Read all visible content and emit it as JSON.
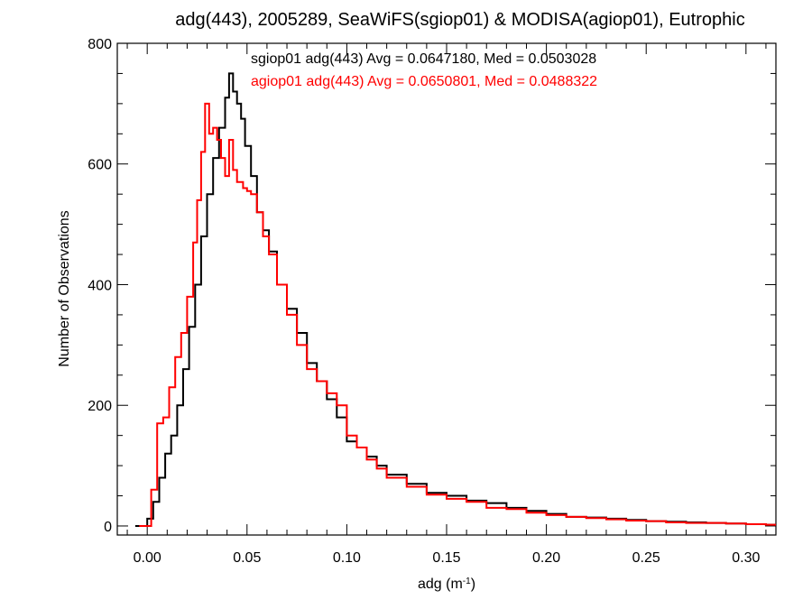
{
  "chart_data": {
    "type": "line",
    "subtype": "step-histogram",
    "title": "adg(443), 2005289, SeaWiFS(sgiop01) & MODISA(agiop01), Eutrophic",
    "xlabel_main": "adg (m",
    "xlabel_sup": "-1",
    "xlabel_end": ")",
    "ylabel": "Number of Observations",
    "xlim": [
      -0.015,
      0.315
    ],
    "ylim": [
      -15,
      800
    ],
    "x_ticks": [
      "0.00",
      "0.05",
      "0.10",
      "0.15",
      "0.20",
      "0.25",
      "0.30"
    ],
    "x_tick_values": [
      0.0,
      0.05,
      0.1,
      0.15,
      0.2,
      0.25,
      0.3
    ],
    "y_ticks": [
      "0",
      "200",
      "400",
      "600",
      "800"
    ],
    "y_tick_values": [
      0,
      200,
      400,
      600,
      800
    ],
    "grid": false,
    "legend_position": "top-right",
    "series": [
      {
        "name": "sgiop01",
        "legend_text": "sgiop01 adg(443) Avg = 0.0647180, Med = 0.0503028",
        "color": "#000000",
        "points": [
          [
            -0.006,
            0
          ],
          [
            0.0,
            12
          ],
          [
            0.003,
            40
          ],
          [
            0.006,
            80
          ],
          [
            0.009,
            120
          ],
          [
            0.012,
            150
          ],
          [
            0.015,
            200
          ],
          [
            0.018,
            260
          ],
          [
            0.021,
            330
          ],
          [
            0.024,
            400
          ],
          [
            0.027,
            480
          ],
          [
            0.03,
            550
          ],
          [
            0.033,
            610
          ],
          [
            0.036,
            660
          ],
          [
            0.039,
            710
          ],
          [
            0.041,
            750
          ],
          [
            0.043,
            720
          ],
          [
            0.045,
            700
          ],
          [
            0.047,
            675
          ],
          [
            0.049,
            630
          ],
          [
            0.052,
            580
          ],
          [
            0.055,
            520
          ],
          [
            0.058,
            490
          ],
          [
            0.061,
            455
          ],
          [
            0.065,
            400
          ],
          [
            0.07,
            360
          ],
          [
            0.075,
            320
          ],
          [
            0.08,
            270
          ],
          [
            0.085,
            240
          ],
          [
            0.09,
            210
          ],
          [
            0.095,
            180
          ],
          [
            0.1,
            140
          ],
          [
            0.105,
            130
          ],
          [
            0.11,
            115
          ],
          [
            0.115,
            100
          ],
          [
            0.12,
            85
          ],
          [
            0.13,
            70
          ],
          [
            0.14,
            55
          ],
          [
            0.15,
            50
          ],
          [
            0.16,
            42
          ],
          [
            0.17,
            38
          ],
          [
            0.18,
            30
          ],
          [
            0.19,
            25
          ],
          [
            0.2,
            20
          ],
          [
            0.21,
            15
          ],
          [
            0.22,
            14
          ],
          [
            0.23,
            12
          ],
          [
            0.24,
            10
          ],
          [
            0.25,
            8
          ],
          [
            0.26,
            7
          ],
          [
            0.27,
            6
          ],
          [
            0.28,
            5
          ],
          [
            0.29,
            4
          ],
          [
            0.3,
            3
          ],
          [
            0.31,
            2
          ],
          [
            0.315,
            2
          ]
        ]
      },
      {
        "name": "agiop01",
        "legend_text": "agiop01 adg(443) Avg = 0.0650801, Med = 0.0488322",
        "color": "#ff0000",
        "points": [
          [
            -0.004,
            0
          ],
          [
            0.002,
            60
          ],
          [
            0.005,
            170
          ],
          [
            0.008,
            180
          ],
          [
            0.011,
            230
          ],
          [
            0.014,
            280
          ],
          [
            0.017,
            320
          ],
          [
            0.02,
            380
          ],
          [
            0.023,
            470
          ],
          [
            0.025,
            540
          ],
          [
            0.027,
            620
          ],
          [
            0.029,
            700
          ],
          [
            0.031,
            650
          ],
          [
            0.033,
            660
          ],
          [
            0.035,
            640
          ],
          [
            0.037,
            610
          ],
          [
            0.039,
            580
          ],
          [
            0.041,
            640
          ],
          [
            0.043,
            590
          ],
          [
            0.045,
            570
          ],
          [
            0.048,
            560
          ],
          [
            0.05,
            555
          ],
          [
            0.052,
            550
          ],
          [
            0.055,
            520
          ],
          [
            0.058,
            480
          ],
          [
            0.061,
            450
          ],
          [
            0.065,
            400
          ],
          [
            0.07,
            350
          ],
          [
            0.075,
            300
          ],
          [
            0.08,
            260
          ],
          [
            0.085,
            240
          ],
          [
            0.09,
            220
          ],
          [
            0.095,
            200
          ],
          [
            0.1,
            150
          ],
          [
            0.105,
            130
          ],
          [
            0.11,
            110
          ],
          [
            0.115,
            95
          ],
          [
            0.12,
            80
          ],
          [
            0.13,
            65
          ],
          [
            0.14,
            52
          ],
          [
            0.15,
            45
          ],
          [
            0.16,
            40
          ],
          [
            0.17,
            30
          ],
          [
            0.18,
            28
          ],
          [
            0.19,
            22
          ],
          [
            0.2,
            18
          ],
          [
            0.21,
            15
          ],
          [
            0.22,
            13
          ],
          [
            0.23,
            11
          ],
          [
            0.24,
            9
          ],
          [
            0.25,
            8
          ],
          [
            0.26,
            6
          ],
          [
            0.27,
            5
          ],
          [
            0.28,
            5
          ],
          [
            0.29,
            4
          ],
          [
            0.3,
            3
          ],
          [
            0.31,
            2
          ],
          [
            0.315,
            2
          ]
        ]
      }
    ]
  }
}
